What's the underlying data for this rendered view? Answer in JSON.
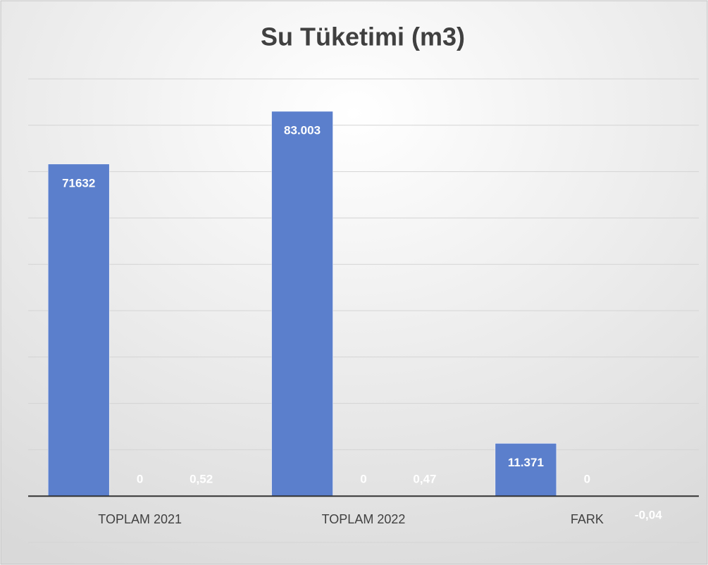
{
  "chart_data": {
    "type": "bar",
    "title": "Su Tüketimi (m3)",
    "categories": [
      "TOPLAM 2021",
      "TOPLAM 2022",
      "FARK"
    ],
    "series": [
      {
        "color": "#5b7fcc",
        "values": [
          71632,
          83003,
          11371
        ],
        "value_labels": [
          "71632",
          "83.003",
          "11.371"
        ]
      },
      {
        "color": "#5b7fcc",
        "values": [
          0,
          0,
          0
        ],
        "value_labels": [
          "0",
          "0",
          "0"
        ]
      },
      {
        "color": "#5b7fcc",
        "values": [
          0.52,
          0.47,
          -0.04
        ],
        "value_labels": [
          "0,52",
          "0,47",
          "-0,04"
        ]
      }
    ],
    "ylim": [
      -10000,
      90000
    ],
    "yticks": [
      -10000,
      0,
      10000,
      20000,
      30000,
      40000,
      50000,
      60000,
      70000,
      80000,
      90000
    ],
    "grid": true
  }
}
